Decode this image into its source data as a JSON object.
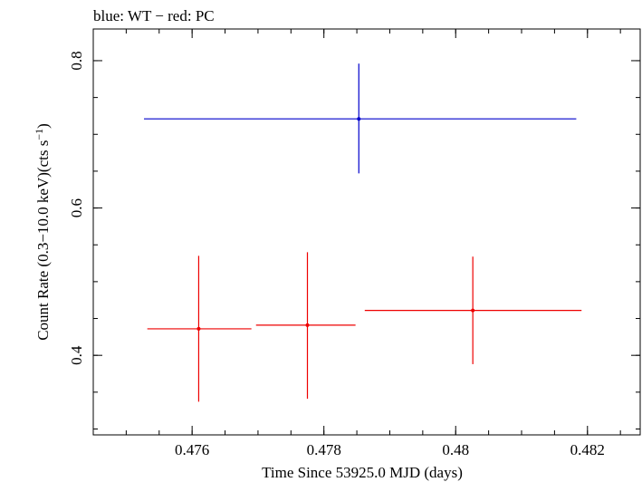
{
  "chart_data": {
    "type": "scatter",
    "title": "blue: WT − red: PC",
    "xlabel": "Time Since 53925.0 MJD (days)",
    "ylabel_main": "Count Rate (0.3−10.0 keV)(cts s",
    "ylabel_sup": "−1",
    "ylabel_end": ")",
    "xlim": [
      0.4745,
      0.4828
    ],
    "ylim": [
      0.292,
      0.843
    ],
    "xticks": [
      {
        "value": 0.476,
        "label": "0.476"
      },
      {
        "value": 0.478,
        "label": "0.478"
      },
      {
        "value": 0.48,
        "label": "0.48"
      },
      {
        "value": 0.482,
        "label": "0.482"
      }
    ],
    "yticks": [
      {
        "value": 0.4,
        "label": "0.4"
      },
      {
        "value": 0.6,
        "label": "0.6"
      },
      {
        "value": 0.8,
        "label": "0.8"
      }
    ],
    "x_minor_step": 0.0005,
    "y_minor_step": 0.05,
    "grid": false,
    "series": [
      {
        "name": "WT",
        "color": "#0000cc",
        "points": [
          {
            "x": 0.47853,
            "xlo": 0.47527,
            "xhi": 0.48183,
            "y": 0.721,
            "ylo": 0.647,
            "yhi": 0.796
          }
        ]
      },
      {
        "name": "PC",
        "color": "#ee0000",
        "points": [
          {
            "x": 0.4761,
            "xlo": 0.47532,
            "xhi": 0.4769,
            "y": 0.436,
            "ylo": 0.337,
            "yhi": 0.535
          },
          {
            "x": 0.47775,
            "xlo": 0.47697,
            "xhi": 0.47848,
            "y": 0.441,
            "ylo": 0.341,
            "yhi": 0.54
          },
          {
            "x": 0.48026,
            "xlo": 0.47862,
            "xhi": 0.48191,
            "y": 0.461,
            "ylo": 0.388,
            "yhi": 0.534
          }
        ]
      }
    ]
  }
}
